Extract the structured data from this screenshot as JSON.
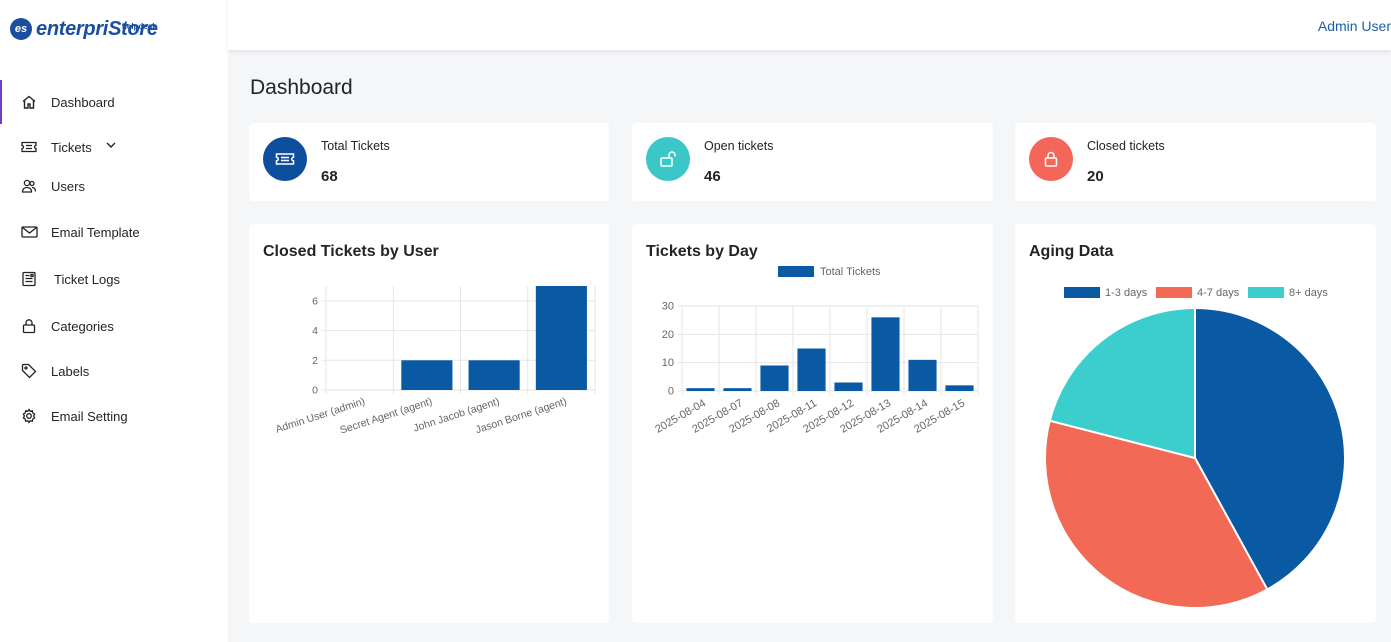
{
  "brand": {
    "badge": "es",
    "name": "enterpriStore",
    "sub": "helpdesk"
  },
  "header": {
    "user": "Admin User"
  },
  "sidebar": {
    "items": [
      {
        "label": "Dashboard",
        "icon": "home-icon"
      },
      {
        "label": "Tickets",
        "icon": "ticket-icon"
      },
      {
        "label": "Users",
        "icon": "users-icon"
      },
      {
        "label": "Email Template",
        "icon": "envelope-icon"
      },
      {
        "label": "Ticket Logs",
        "icon": "logs-icon"
      },
      {
        "label": "Categories",
        "icon": "lock-icon"
      },
      {
        "label": "Labels",
        "icon": "tag-icon"
      },
      {
        "label": "Email Setting",
        "icon": "gear-icon"
      }
    ]
  },
  "page": {
    "title": "Dashboard"
  },
  "stats": [
    {
      "label": "Total Tickets",
      "value": "68",
      "color": "#0d4f9c",
      "icon": "ticket-icon"
    },
    {
      "label": "Open tickets",
      "value": "46",
      "color": "#3bc7c7",
      "icon": "unlock-icon"
    },
    {
      "label": "Closed tickets",
      "value": "20",
      "color": "#f4655a",
      "icon": "lock-icon"
    }
  ],
  "colors": {
    "blue": "#0a5aa3",
    "red": "#f26955",
    "teal": "#3ccdcd",
    "grid": "#e6e6e6"
  },
  "charts": {
    "closed_by_user": {
      "title": "Closed Tickets by User"
    },
    "by_day": {
      "title": "Tickets by Day"
    },
    "aging": {
      "title": "Aging Data"
    }
  },
  "chart_data": [
    {
      "type": "bar",
      "title": "Closed Tickets by User",
      "categories": [
        "Admin User (admin)",
        "Secret Agent (agent)",
        "John Jacob (agent)",
        "Jason Borne (agent)"
      ],
      "values": [
        0,
        2,
        2,
        7
      ],
      "ylim": [
        0,
        7
      ],
      "yticks": [
        0,
        2,
        4,
        6
      ],
      "grid": true
    },
    {
      "type": "bar",
      "title": "Tickets by Day",
      "categories": [
        "2025-08-04",
        "2025-08-07",
        "2025-08-08",
        "2025-08-11",
        "2025-08-12",
        "2025-08-13",
        "2025-08-14",
        "2025-08-15"
      ],
      "series": [
        {
          "name": "Total Tickets",
          "values": [
            1,
            1,
            9,
            15,
            3,
            26,
            11,
            2
          ]
        }
      ],
      "ylim": [
        0,
        30
      ],
      "yticks": [
        0,
        10,
        20,
        30
      ],
      "legend": "top",
      "grid": true
    },
    {
      "type": "pie",
      "title": "Aging Data",
      "labels": [
        "1-3 days",
        "4-7 days",
        "8+ days"
      ],
      "values": [
        42,
        37,
        21
      ],
      "legend": "top"
    }
  ]
}
